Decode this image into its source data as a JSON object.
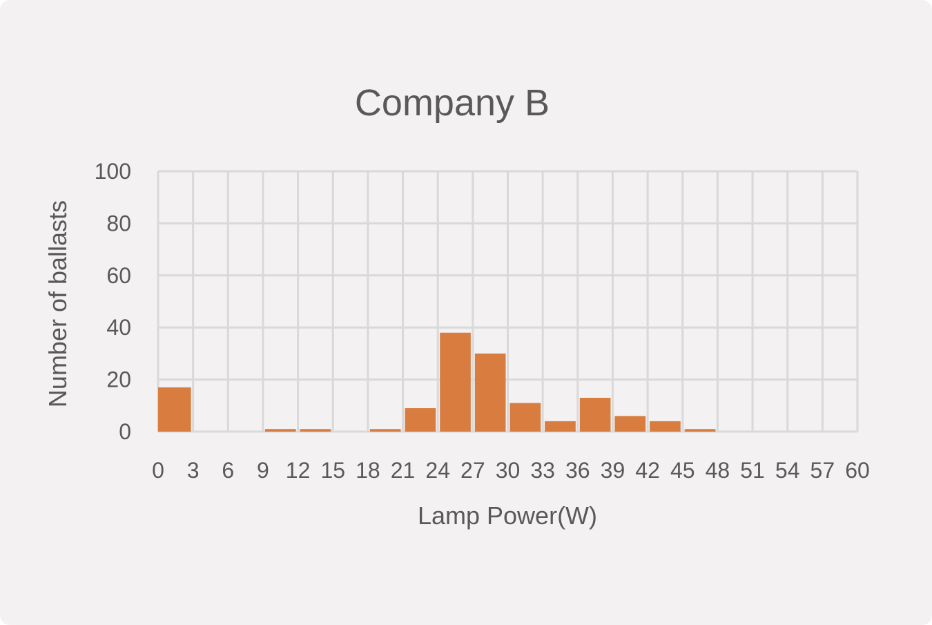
{
  "chart_data": {
    "type": "bar",
    "title": "Company B",
    "xlabel": "Lamp Power(W)",
    "ylabel": "Number of ballasts",
    "xlim": [
      0,
      60
    ],
    "ylim": [
      0,
      100
    ],
    "xticks": [
      0,
      3,
      6,
      9,
      12,
      15,
      18,
      21,
      24,
      27,
      30,
      33,
      36,
      39,
      42,
      45,
      48,
      51,
      54,
      57,
      60
    ],
    "yticks": [
      0,
      20,
      40,
      60,
      80,
      100
    ],
    "bin_width": 3,
    "bins": [
      {
        "x_start": 0,
        "value": 17
      },
      {
        "x_start": 3,
        "value": 0
      },
      {
        "x_start": 6,
        "value": 0
      },
      {
        "x_start": 9,
        "value": 1
      },
      {
        "x_start": 12,
        "value": 1
      },
      {
        "x_start": 15,
        "value": 0
      },
      {
        "x_start": 18,
        "value": 1
      },
      {
        "x_start": 21,
        "value": 9
      },
      {
        "x_start": 24,
        "value": 38
      },
      {
        "x_start": 27,
        "value": 30
      },
      {
        "x_start": 30,
        "value": 11
      },
      {
        "x_start": 33,
        "value": 4
      },
      {
        "x_start": 36,
        "value": 13
      },
      {
        "x_start": 39,
        "value": 6
      },
      {
        "x_start": 42,
        "value": 4
      },
      {
        "x_start": 45,
        "value": 1
      },
      {
        "x_start": 48,
        "value": 0
      },
      {
        "x_start": 51,
        "value": 0
      },
      {
        "x_start": 54,
        "value": 0
      },
      {
        "x_start": 57,
        "value": 0
      }
    ],
    "grid": true,
    "bar_color": "#d87c3f",
    "grid_color": "#d9d9d9"
  }
}
